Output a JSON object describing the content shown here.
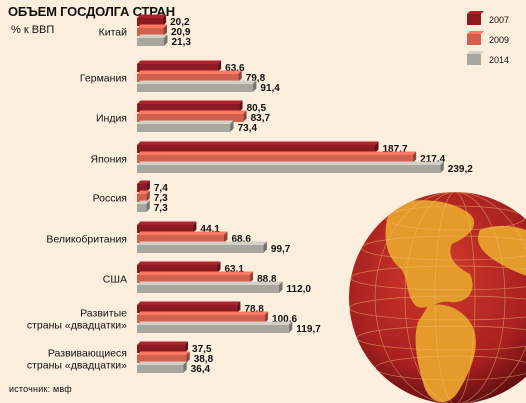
{
  "header": {
    "title": "ОБЪЕМ ГОСДОЛГА СТРАН",
    "unit": "% к ВВП"
  },
  "footer": {
    "source": "источник: мвф"
  },
  "colors": {
    "background": "#fbeedd",
    "series_2007": "#8c1a22",
    "series_2009": "#d2604f",
    "series_2014": "#a9a6a0",
    "globe_sea": "#a8201f",
    "globe_land": "#e59a2c"
  },
  "chart_data": {
    "type": "bar",
    "orientation": "horizontal",
    "title": "ОБЪЕМ ГОСДОЛГА СТРАН",
    "ylabel": "% к ВВП",
    "categories": [
      [
        "Китай"
      ],
      [
        "Германия"
      ],
      [
        "Индия"
      ],
      [
        "Япония"
      ],
      [
        "Россия"
      ],
      [
        "Великобритания"
      ],
      [
        "США"
      ],
      [
        "Развитые",
        "страны «двадцатки»"
      ],
      [
        "Развивающиеся",
        "страны «двадцатки»"
      ]
    ],
    "series": [
      {
        "name": "2007",
        "values": [
          20.2,
          63.6,
          80.5,
          187.7,
          7.4,
          44.1,
          63.1,
          78.8,
          37.5
        ],
        "labels": [
          "20,2",
          "63,6",
          "80,5",
          "187,7",
          "7,4",
          "44,1",
          "63,1",
          "78,8",
          "37,5"
        ]
      },
      {
        "name": "2009",
        "values": [
          20.9,
          79.8,
          83.7,
          217.4,
          7.3,
          68.6,
          88.8,
          100.6,
          38.8
        ],
        "labels": [
          "20,9",
          "79,8",
          "83,7",
          "217,4",
          "7,3",
          "68,6",
          "88,8",
          "100,6",
          "38,8"
        ]
      },
      {
        "name": "2014",
        "values": [
          21.3,
          91.4,
          73.4,
          239.2,
          7.3,
          99.7,
          112.0,
          119.7,
          36.4
        ],
        "labels": [
          "21,3",
          "91,4",
          "73,4",
          "239,2",
          "7,3",
          "99,7",
          "112,0",
          "119,7",
          "36,4"
        ]
      }
    ],
    "legend_position": "top-right",
    "grid": false
  }
}
